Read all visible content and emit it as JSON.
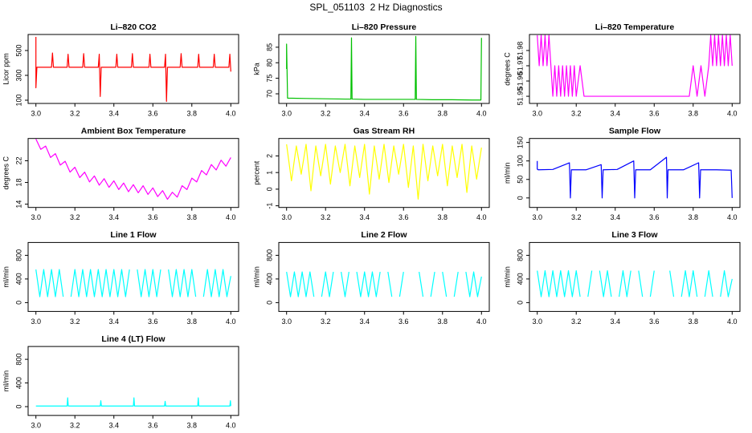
{
  "title": "SPL_051103  2 Hz Diagnostics",
  "chart_data": [
    {
      "type": "line",
      "title": "Li–820 CO2",
      "y_label": "Licor ppm",
      "color": "#ff0000",
      "xlim": [
        2.96,
        4.04
      ],
      "ylim": [
        74,
        629
      ],
      "xticks": [
        {
          "value": 3,
          "label": "3.0"
        },
        3.2,
        3.4,
        3.6,
        3.8,
        {
          "value": 4,
          "label": "4.0"
        }
      ],
      "yticks": [
        100,
        300,
        500
      ],
      "x": [
        3.0,
        3.0,
        3.005,
        3.02,
        3.05,
        3.08,
        3.085,
        3.09,
        3.13,
        3.16,
        3.165,
        3.17,
        3.2,
        3.24,
        3.245,
        3.25,
        3.29,
        3.32,
        3.325,
        3.33,
        3.335,
        3.34,
        3.37,
        3.41,
        3.415,
        3.42,
        3.45,
        3.49,
        3.495,
        3.5,
        3.54,
        3.58,
        3.585,
        3.59,
        3.63,
        3.66,
        3.665,
        3.67,
        3.675,
        3.68,
        3.71,
        3.74,
        3.745,
        3.75,
        3.79,
        3.83,
        3.835,
        3.84,
        3.87,
        3.91,
        3.915,
        3.92,
        3.96,
        3.99,
        3.995,
        4.0
      ],
      "values": [
        610,
        200,
        365,
        365,
        365,
        365,
        480,
        365,
        365,
        365,
        470,
        365,
        365,
        365,
        475,
        365,
        365,
        365,
        470,
        130,
        365,
        365,
        365,
        365,
        470,
        365,
        365,
        365,
        475,
        365,
        365,
        365,
        470,
        365,
        365,
        365,
        470,
        90,
        365,
        365,
        365,
        365,
        475,
        365,
        365,
        365,
        470,
        365,
        365,
        365,
        470,
        365,
        365,
        365,
        470,
        330
      ]
    },
    {
      "type": "line",
      "title": "Li–820 Pressure",
      "y_label": "kPa",
      "color": "#00c000",
      "xlim": [
        2.96,
        4.04
      ],
      "ylim": [
        66.9,
        89.1
      ],
      "xticks": [
        {
          "value": 3,
          "label": "3.0"
        },
        3.2,
        3.4,
        3.6,
        3.8,
        {
          "value": 4,
          "label": "4.0"
        }
      ],
      "yticks": [
        70,
        75,
        80,
        85
      ],
      "x": [
        3.0,
        3.0,
        3.005,
        3.1,
        3.2,
        3.3,
        3.33,
        3.333,
        3.336,
        3.4,
        3.5,
        3.6,
        3.66,
        3.663,
        3.666,
        3.75,
        3.85,
        3.95,
        3.997,
        4.0
      ],
      "values": [
        78,
        86,
        68.6,
        68.5,
        68.4,
        68.3,
        68.3,
        88,
        68.3,
        68.2,
        68.2,
        68.2,
        68.2,
        88.5,
        68.2,
        68.1,
        68.1,
        68.0,
        68.0,
        88
      ]
    },
    {
      "type": "line",
      "title": "Li–820 Temperature",
      "y_label": "degrees C",
      "color": "#ff00ff",
      "xlim": [
        2.96,
        4.04
      ],
      "ylim": [
        51.9453,
        51.9905
      ],
      "xticks": [
        {
          "value": 3,
          "label": "3.0"
        },
        3.2,
        3.4,
        3.6,
        3.8,
        {
          "value": 4,
          "label": "4.0"
        }
      ],
      "yticks": [
        51.95,
        51.96,
        51.97,
        51.98
      ],
      "x": [
        3.0,
        3.01,
        3.02,
        3.03,
        3.04,
        3.05,
        3.06,
        3.07,
        3.08,
        3.09,
        3.1,
        3.11,
        3.12,
        3.13,
        3.14,
        3.15,
        3.16,
        3.17,
        3.18,
        3.19,
        3.2,
        3.22,
        3.24,
        3.26,
        3.5,
        3.78,
        3.8,
        3.82,
        3.84,
        3.86,
        3.88,
        3.89,
        3.9,
        3.91,
        3.92,
        3.93,
        3.94,
        3.95,
        3.96,
        3.97,
        3.98,
        3.99,
        4.0
      ],
      "values": [
        51.99,
        51.97,
        51.99,
        51.97,
        51.99,
        51.97,
        51.99,
        51.97,
        51.95,
        51.97,
        51.95,
        51.97,
        51.95,
        51.97,
        51.95,
        51.97,
        51.95,
        51.97,
        51.95,
        51.97,
        51.95,
        51.97,
        51.95,
        51.95,
        51.95,
        51.95,
        51.97,
        51.95,
        51.97,
        51.95,
        51.97,
        51.99,
        51.97,
        51.99,
        51.97,
        51.99,
        51.97,
        51.99,
        51.97,
        51.99,
        51.97,
        51.99,
        51.97
      ]
    },
    {
      "type": "line",
      "title": "Ambient Box Temperature",
      "y_label": "degrees C",
      "color": "#ff00ff",
      "xlim": [
        2.96,
        4.04
      ],
      "ylim": [
        13.4,
        26.1
      ],
      "xticks": [
        {
          "value": 3,
          "label": "3.0"
        },
        3.2,
        3.4,
        3.6,
        3.8,
        {
          "value": 4,
          "label": "4.0"
        }
      ],
      "yticks": [
        14,
        18,
        22
      ],
      "x": [
        3.0,
        3.025,
        3.05,
        3.075,
        3.1,
        3.125,
        3.15,
        3.175,
        3.2,
        3.225,
        3.25,
        3.275,
        3.3,
        3.325,
        3.35,
        3.375,
        3.4,
        3.425,
        3.45,
        3.475,
        3.5,
        3.525,
        3.55,
        3.575,
        3.6,
        3.625,
        3.65,
        3.675,
        3.7,
        3.725,
        3.75,
        3.775,
        3.8,
        3.825,
        3.85,
        3.875,
        3.9,
        3.925,
        3.95,
        3.975,
        4.0
      ],
      "values": [
        26.0,
        24.1,
        24.7,
        22.6,
        23.3,
        21.2,
        21.9,
        19.9,
        20.8,
        18.9,
        19.9,
        18.1,
        19.2,
        17.5,
        18.7,
        17.1,
        18.3,
        16.7,
        17.9,
        16.3,
        17.6,
        16.1,
        17.4,
        15.8,
        17.0,
        15.4,
        16.5,
        14.9,
        16.2,
        15.3,
        17.4,
        16.7,
        18.8,
        18.1,
        20.2,
        19.4,
        21.3,
        20.3,
        22.1,
        21.0,
        22.6
      ]
    },
    {
      "type": "line",
      "title": "Gas Stream RH",
      "y_label": "percent",
      "color": "#ffff00",
      "xlim": [
        2.96,
        4.04
      ],
      "ylim": [
        -1.1,
        3.05
      ],
      "xticks": [
        {
          "value": 3,
          "label": "3.0"
        },
        3.2,
        3.4,
        3.6,
        3.8,
        {
          "value": 4,
          "label": "4.0"
        }
      ],
      "yticks": [
        -1,
        0,
        1,
        2
      ],
      "x": [
        3.0,
        3.025,
        3.05,
        3.075,
        3.1,
        3.125,
        3.15,
        3.175,
        3.2,
        3.225,
        3.25,
        3.275,
        3.3,
        3.325,
        3.35,
        3.375,
        3.4,
        3.425,
        3.45,
        3.475,
        3.5,
        3.525,
        3.55,
        3.575,
        3.6,
        3.625,
        3.65,
        3.675,
        3.7,
        3.725,
        3.75,
        3.775,
        3.8,
        3.825,
        3.85,
        3.875,
        3.9,
        3.925,
        3.95,
        3.975,
        4.0
      ],
      "values": [
        2.7,
        0.5,
        2.6,
        0.9,
        2.7,
        -0.1,
        2.6,
        0.8,
        2.7,
        0.3,
        2.6,
        1.0,
        2.7,
        0.2,
        2.6,
        0.7,
        2.7,
        -0.3,
        2.6,
        0.6,
        2.7,
        0.4,
        2.6,
        0.9,
        2.7,
        0.1,
        2.6,
        -0.6,
        2.7,
        0.5,
        2.6,
        0.8,
        2.7,
        0.2,
        2.6,
        0.7,
        2.7,
        -0.2,
        2.6,
        0.6,
        2.5
      ]
    },
    {
      "type": "line",
      "title": "Sample Flow",
      "y_label": "ml/min",
      "color": "#0000ff",
      "xlim": [
        2.96,
        4.04
      ],
      "ylim": [
        -25.7,
        160.7
      ],
      "xticks": [
        {
          "value": 3,
          "label": "3.0"
        },
        3.2,
        3.4,
        3.6,
        3.8,
        {
          "value": 4,
          "label": "4.0"
        }
      ],
      "yticks": [
        0,
        50,
        100,
        150
      ],
      "x": [
        3.0,
        3.0,
        3.005,
        3.08,
        3.165,
        3.17,
        3.175,
        3.25,
        3.328,
        3.333,
        3.338,
        3.41,
        3.495,
        3.5,
        3.505,
        3.58,
        3.663,
        3.667,
        3.671,
        3.75,
        3.828,
        3.833,
        3.838,
        3.92,
        3.995,
        4.0
      ],
      "values": [
        100,
        78,
        76,
        77,
        95,
        0,
        76,
        76,
        90,
        0,
        76,
        77,
        100,
        0,
        76,
        76,
        110,
        0,
        76,
        76,
        95,
        0,
        76,
        76,
        75,
        0
      ]
    },
    {
      "type": "line",
      "title": "Line 1 Flow",
      "y_label": "ml/min",
      "color": "#00ffff",
      "xlim": [
        2.96,
        4.04
      ],
      "ylim": [
        -149,
        1017
      ],
      "xticks": [
        {
          "value": 3,
          "label": "3.0"
        },
        3.2,
        3.4,
        3.6,
        3.8,
        {
          "value": 4,
          "label": "4.0"
        }
      ],
      "yticks": [
        0,
        400,
        800
      ],
      "x": [
        3.0,
        3.02,
        3.04,
        3.06,
        3.08,
        3.1,
        3.12,
        3.14,
        3.16,
        3.18,
        3.2,
        3.22,
        3.24,
        3.26,
        3.28,
        3.3,
        3.32,
        3.34,
        3.36,
        3.38,
        3.4,
        3.42,
        3.44,
        3.46,
        3.48,
        3.5,
        3.52,
        3.54,
        3.56,
        3.58,
        3.6,
        3.62,
        3.64,
        3.66,
        3.68,
        3.7,
        3.72,
        3.74,
        3.76,
        3.78,
        3.8,
        3.82,
        3.84,
        3.86,
        3.88,
        3.9,
        3.92,
        3.94,
        3.96,
        3.98,
        4.0
      ],
      "values": [
        560,
        100,
        560,
        100,
        560,
        100,
        560,
        100,
        null,
        100,
        560,
        100,
        560,
        100,
        560,
        100,
        560,
        100,
        560,
        100,
        560,
        100,
        560,
        100,
        560,
        null,
        560,
        100,
        560,
        100,
        560,
        100,
        560,
        null,
        560,
        100,
        560,
        100,
        560,
        100,
        560,
        100,
        null,
        100,
        560,
        100,
        560,
        100,
        560,
        100,
        450
      ]
    },
    {
      "type": "line",
      "title": "Line 2 Flow",
      "y_label": "ml/min",
      "color": "#00ffff",
      "xlim": [
        2.96,
        4.04
      ],
      "ylim": [
        -149,
        1017
      ],
      "xticks": [
        {
          "value": 3,
          "label": "3.0"
        },
        3.2,
        3.4,
        3.6,
        3.8,
        {
          "value": 4,
          "label": "4.0"
        }
      ],
      "yticks": [
        0,
        400,
        800
      ],
      "x": [
        3.0,
        3.02,
        3.04,
        3.06,
        3.08,
        3.1,
        3.12,
        3.14,
        3.16,
        3.18,
        3.2,
        3.22,
        3.24,
        3.26,
        3.28,
        3.3,
        3.32,
        3.34,
        3.36,
        3.38,
        3.4,
        3.42,
        3.44,
        3.46,
        3.48,
        3.5,
        3.52,
        3.54,
        3.56,
        3.58,
        3.6,
        3.62,
        3.64,
        3.66,
        3.68,
        3.7,
        3.72,
        3.74,
        3.76,
        3.78,
        3.8,
        3.82,
        3.84,
        3.86,
        3.88,
        3.9,
        3.92,
        3.94,
        3.96,
        3.98,
        4.0
      ],
      "values": [
        520,
        100,
        520,
        100,
        520,
        100,
        520,
        100,
        null,
        100,
        520,
        100,
        520,
        null,
        520,
        100,
        520,
        null,
        520,
        100,
        520,
        100,
        520,
        100,
        520,
        null,
        520,
        100,
        null,
        100,
        520,
        null,
        520,
        null,
        520,
        100,
        null,
        100,
        520,
        null,
        520,
        100,
        null,
        100,
        520,
        null,
        520,
        100,
        520,
        100,
        440
      ]
    },
    {
      "type": "line",
      "title": "Line 3 Flow",
      "y_label": "ml/min",
      "color": "#00ffff",
      "xlim": [
        2.96,
        4.04
      ],
      "ylim": [
        -149,
        1017
      ],
      "xticks": [
        {
          "value": 3,
          "label": "3.0"
        },
        3.2,
        3.4,
        3.6,
        3.8,
        {
          "value": 4,
          "label": "4.0"
        }
      ],
      "yticks": [
        0,
        400,
        800
      ],
      "x": [
        3.0,
        3.02,
        3.04,
        3.06,
        3.08,
        3.1,
        3.12,
        3.14,
        3.16,
        3.18,
        3.2,
        3.22,
        3.24,
        3.26,
        3.28,
        3.3,
        3.32,
        3.34,
        3.36,
        3.38,
        3.4,
        3.42,
        3.44,
        3.46,
        3.48,
        3.5,
        3.52,
        3.54,
        3.56,
        3.58,
        3.6,
        3.62,
        3.64,
        3.66,
        3.68,
        3.7,
        3.72,
        3.74,
        3.76,
        3.78,
        3.8,
        3.82,
        3.84,
        3.86,
        3.88,
        3.9,
        3.92,
        3.94,
        3.96,
        3.98,
        4.0
      ],
      "values": [
        540,
        100,
        540,
        100,
        540,
        100,
        540,
        100,
        540,
        100,
        540,
        100,
        null,
        100,
        540,
        null,
        540,
        100,
        540,
        100,
        null,
        100,
        540,
        100,
        540,
        null,
        540,
        100,
        null,
        100,
        540,
        null,
        540,
        null,
        540,
        100,
        null,
        100,
        540,
        100,
        540,
        100,
        null,
        100,
        540,
        100,
        null,
        100,
        540,
        100,
        400
      ]
    },
    {
      "type": "line",
      "title": "Line 4 (LT) Flow",
      "y_label": "ml/min",
      "color": "#00ffff",
      "xlim": [
        2.96,
        4.04
      ],
      "ylim": [
        -149,
        1017
      ],
      "xticks": [
        {
          "value": 3,
          "label": "3.0"
        },
        3.2,
        3.4,
        3.6,
        3.8,
        {
          "value": 4,
          "label": "4.0"
        }
      ],
      "yticks": [
        0,
        400,
        800
      ],
      "x": [
        3.0,
        3.16,
        3.163,
        3.166,
        3.33,
        3.333,
        3.336,
        3.5,
        3.503,
        3.506,
        3.66,
        3.663,
        3.666,
        3.83,
        3.833,
        3.836,
        3.995,
        3.998,
        4.0
      ],
      "values": [
        10,
        10,
        150,
        10,
        10,
        100,
        10,
        10,
        150,
        10,
        10,
        90,
        10,
        10,
        150,
        10,
        10,
        100,
        10
      ]
    }
  ]
}
